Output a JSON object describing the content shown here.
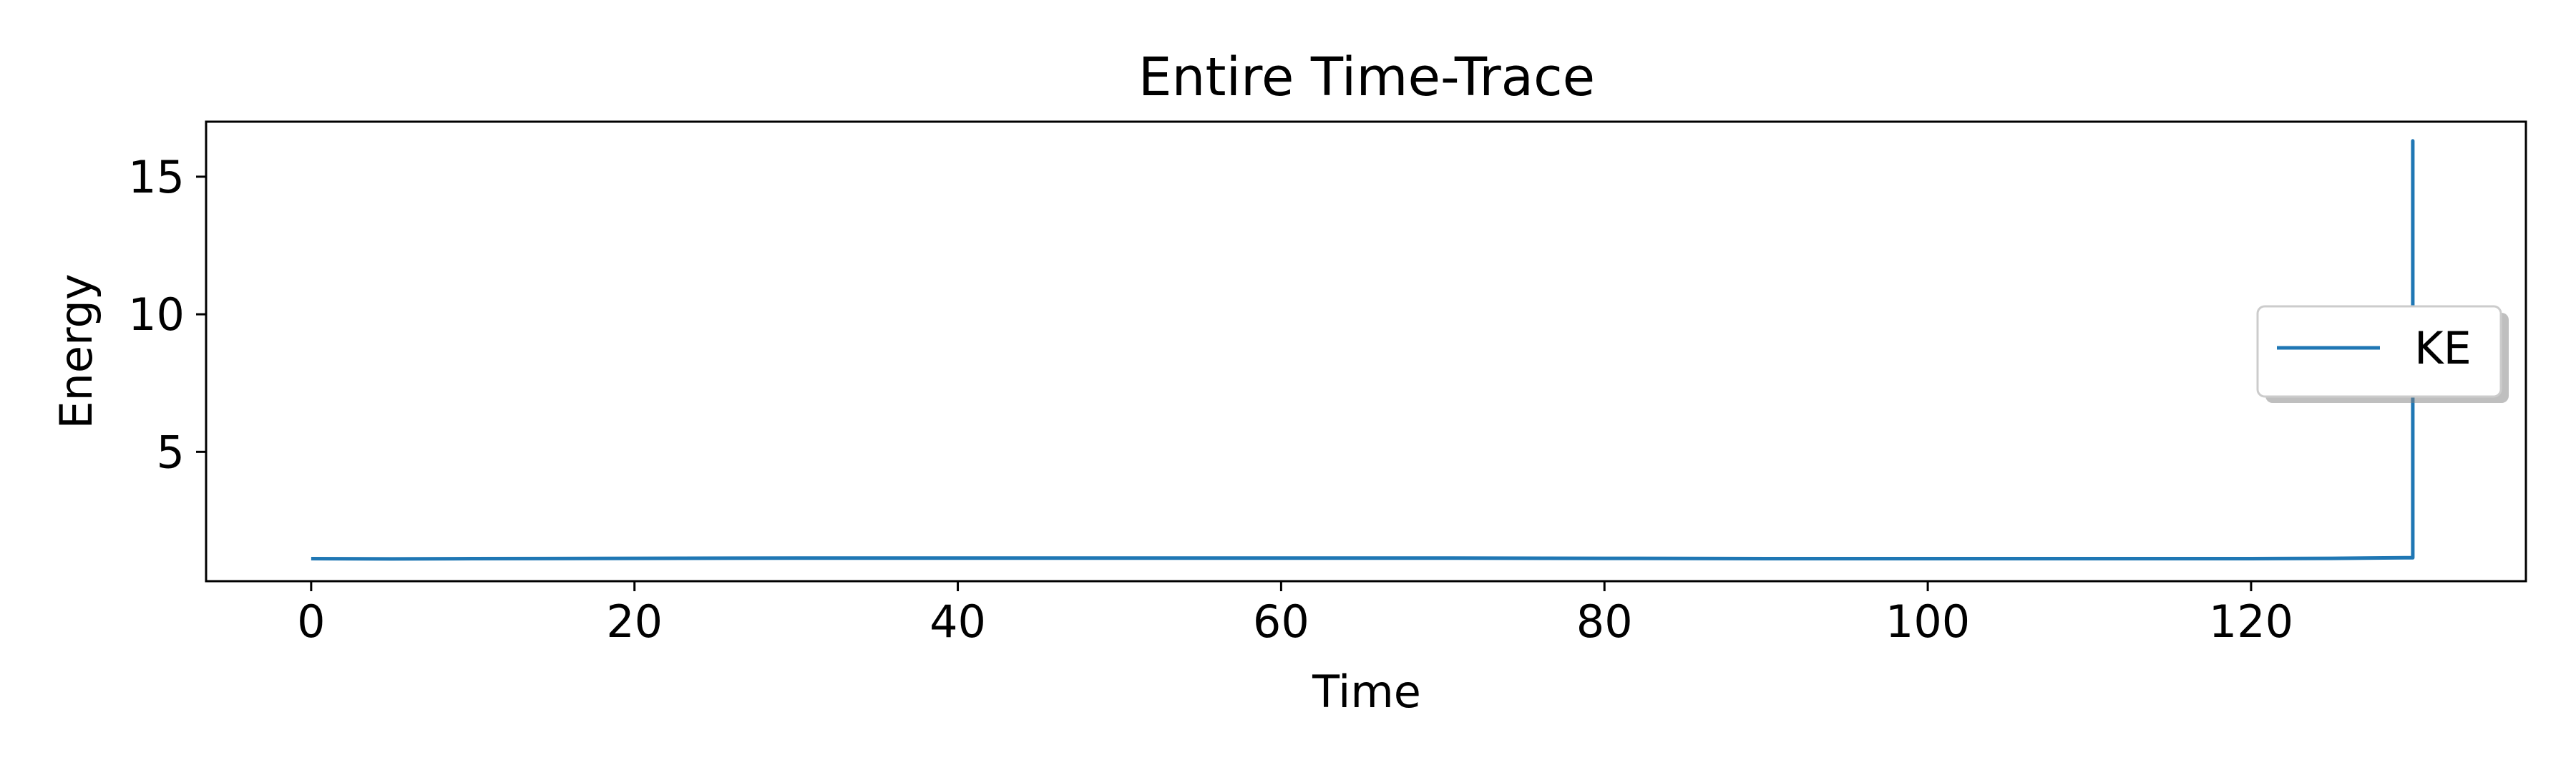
{
  "chart_data": {
    "type": "line",
    "title": "Entire Time-Trace",
    "xlabel": "Time",
    "ylabel": "Energy",
    "xlim": [
      -6.5,
      137
    ],
    "ylim": [
      0.3,
      17
    ],
    "xticks": [
      0,
      20,
      40,
      60,
      80,
      100,
      120
    ],
    "yticks": [
      5,
      10,
      15
    ],
    "grid": false,
    "legend": {
      "placement": "center-right",
      "entries": [
        "KE"
      ]
    },
    "series": [
      {
        "name": "KE",
        "color": "#1f77b4",
        "x": [
          0,
          5,
          10,
          20,
          30,
          40,
          50,
          60,
          70,
          80,
          90,
          100,
          110,
          120,
          125,
          129.5,
          130,
          130,
          130,
          130
        ],
        "y": [
          1.12,
          1.11,
          1.12,
          1.13,
          1.14,
          1.14,
          1.14,
          1.14,
          1.14,
          1.13,
          1.12,
          1.12,
          1.12,
          1.12,
          1.13,
          1.15,
          1.15,
          16.3,
          1.15,
          1.15
        ]
      }
    ]
  }
}
